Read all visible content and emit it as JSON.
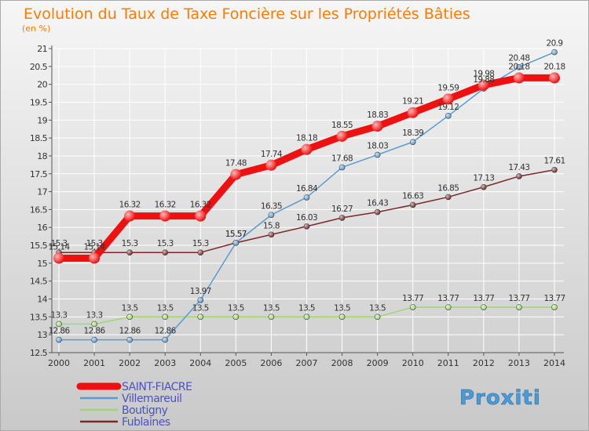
{
  "chart_data": {
    "type": "line",
    "title": "Evolution du Taux de Taxe Foncière sur les Propriétés Bâties",
    "subtitle": "(en %)",
    "xlabel": "",
    "ylabel": "",
    "ylim": [
      12.5,
      21
    ],
    "yticks": [
      "12.5",
      "13",
      "13.5",
      "14",
      "14.5",
      "15",
      "15.5",
      "16",
      "16.5",
      "17",
      "17.5",
      "18",
      "18.5",
      "19",
      "19.5",
      "20",
      "20.5",
      "21"
    ],
    "categories": [
      "2000",
      "2001",
      "2002",
      "2003",
      "2004",
      "2005",
      "2006",
      "2007",
      "2008",
      "2009",
      "2010",
      "2011",
      "2012",
      "2013",
      "2014"
    ],
    "grid": true,
    "legend_position": "bottom-left",
    "series": [
      {
        "name": "Fublaines",
        "color": "#7a2a2a",
        "values": [
          15.3,
          15.3,
          15.3,
          15.3,
          15.3,
          15.57,
          15.8,
          16.03,
          16.27,
          16.43,
          16.63,
          16.85,
          17.13,
          17.43,
          17.61
        ],
        "labels": [
          "15.3",
          "15.3",
          "15.3",
          "15.3",
          "15.3",
          "15.57",
          "15.8",
          "16.03",
          "16.27",
          "16.43",
          "16.63",
          "16.85",
          "17.13",
          "17.43",
          "17.61"
        ]
      },
      {
        "name": "Boutigny",
        "color": "#9bd772",
        "values": [
          13.3,
          13.3,
          13.5,
          13.5,
          13.5,
          13.5,
          13.5,
          13.5,
          13.5,
          13.5,
          13.77,
          13.77,
          13.77,
          13.77,
          13.77
        ],
        "labels": [
          "13.3",
          "13.3",
          "13.5",
          "13.5",
          "13.5",
          "13.5",
          "13.5",
          "13.5",
          "13.5",
          "13.5",
          "13.77",
          "13.77",
          "13.77",
          "13.77",
          "13.77"
        ]
      },
      {
        "name": "Villemareuil",
        "color": "#5b9bd0",
        "values": [
          12.86,
          12.86,
          12.86,
          12.86,
          13.97,
          15.57,
          16.35,
          16.84,
          17.68,
          18.03,
          18.39,
          19.12,
          19.88,
          20.48,
          20.9
        ],
        "labels": [
          "12.86",
          "12.86",
          "12.86",
          "12.86",
          "13.97",
          "15.57",
          "16.35",
          "16.84",
          "17.68",
          "18.03",
          "18.39",
          "19.12",
          "19.88",
          "20.48",
          "20.9"
        ]
      },
      {
        "name": "SAINT-FIACRE",
        "color": "#ee1111",
        "values": [
          15.14,
          15.14,
          16.32,
          16.32,
          16.32,
          17.48,
          17.74,
          18.18,
          18.55,
          18.83,
          19.21,
          19.59,
          19.98,
          20.18,
          20.18
        ],
        "labels": [
          "15.14",
          "15.14",
          "16.32",
          "16.32",
          "16.32",
          "17.48",
          "17.74",
          "18.18",
          "18.55",
          "18.83",
          "19.21",
          "19.59",
          "19.98",
          "20.18",
          "20.18"
        ]
      }
    ],
    "legend": [
      {
        "name": "SAINT-FIACRE",
        "color": "#ee1111"
      },
      {
        "name": "Villemareuil",
        "color": "#5b9bd0"
      },
      {
        "name": "Boutigny",
        "color": "#9bd772"
      },
      {
        "name": "Fublaines",
        "color": "#7a2a2a"
      }
    ]
  },
  "watermark": {
    "text": "Proxiti"
  },
  "colors": {
    "title": "#ff7a00",
    "legend_text": "#4b53b8",
    "axis_text": "#333333",
    "label_text": "#333333",
    "grid": "#ffffff",
    "background_top": "#f5f5f5",
    "background_bottom": "#c8c8c8"
  }
}
